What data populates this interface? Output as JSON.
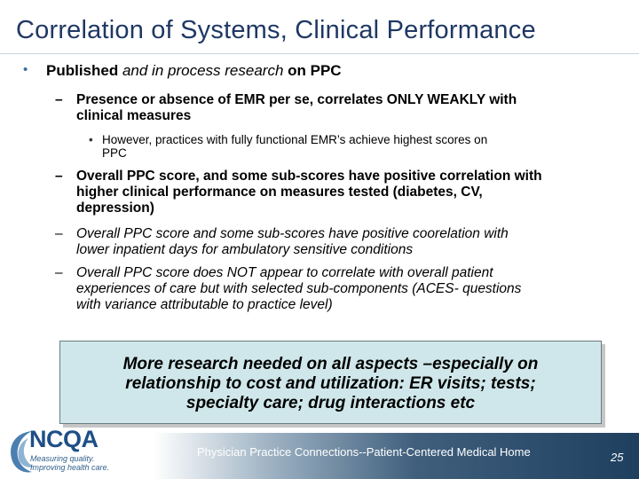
{
  "title": "Correlation of Systems, Clinical Performance",
  "level1": {
    "bullet": "•",
    "parts": [
      "Published ",
      "and in process research ",
      "on PPC"
    ]
  },
  "items": [
    {
      "dash": "–",
      "lines": [
        "Presence or absence of EMR per se, correlates ONLY WEAKLY with",
        "clinical measures"
      ]
    },
    {
      "dash": "–",
      "lines": [
        "Overall PPC score, and some sub-scores have positive correlation with",
        "higher clinical performance on measures tested  (diabetes, CV,",
        "depression)"
      ]
    },
    {
      "dash": "–",
      "lines": [
        "Overall PPC score and some sub-scores have positive coorelation with",
        "lower inpatient days for ambulatory sensitive conditions"
      ]
    },
    {
      "dash": "–",
      "lines": [
        "Overall PPC score does NOT appear to correlate with overall patient",
        "experiences of care but with selected sub-components (ACES- questions",
        "with variance attributable to practice level)"
      ]
    }
  ],
  "subitem": {
    "bullet": "•",
    "lines": [
      "However, practices with fully functional EMR’s achieve highest scores on",
      "PPC"
    ]
  },
  "callout": {
    "lines": [
      "More research needed on all aspects –especially on",
      "relationship to cost and utilization: ER visits; tests;",
      "specialty care; drug interactions etc"
    ]
  },
  "footer": {
    "text": "Physician Practice Connections--Patient-Centered Medical  Home",
    "page": "25"
  },
  "logo": {
    "word": "NCQA",
    "tagline1": "Measuring quality.",
    "tagline2": "Improving health care."
  },
  "colors": {
    "title": "#1f3864",
    "callout_bg": "#cfe7ea",
    "footer_dark": "#1f3f5f",
    "logo_blue": "#1e4f86"
  }
}
